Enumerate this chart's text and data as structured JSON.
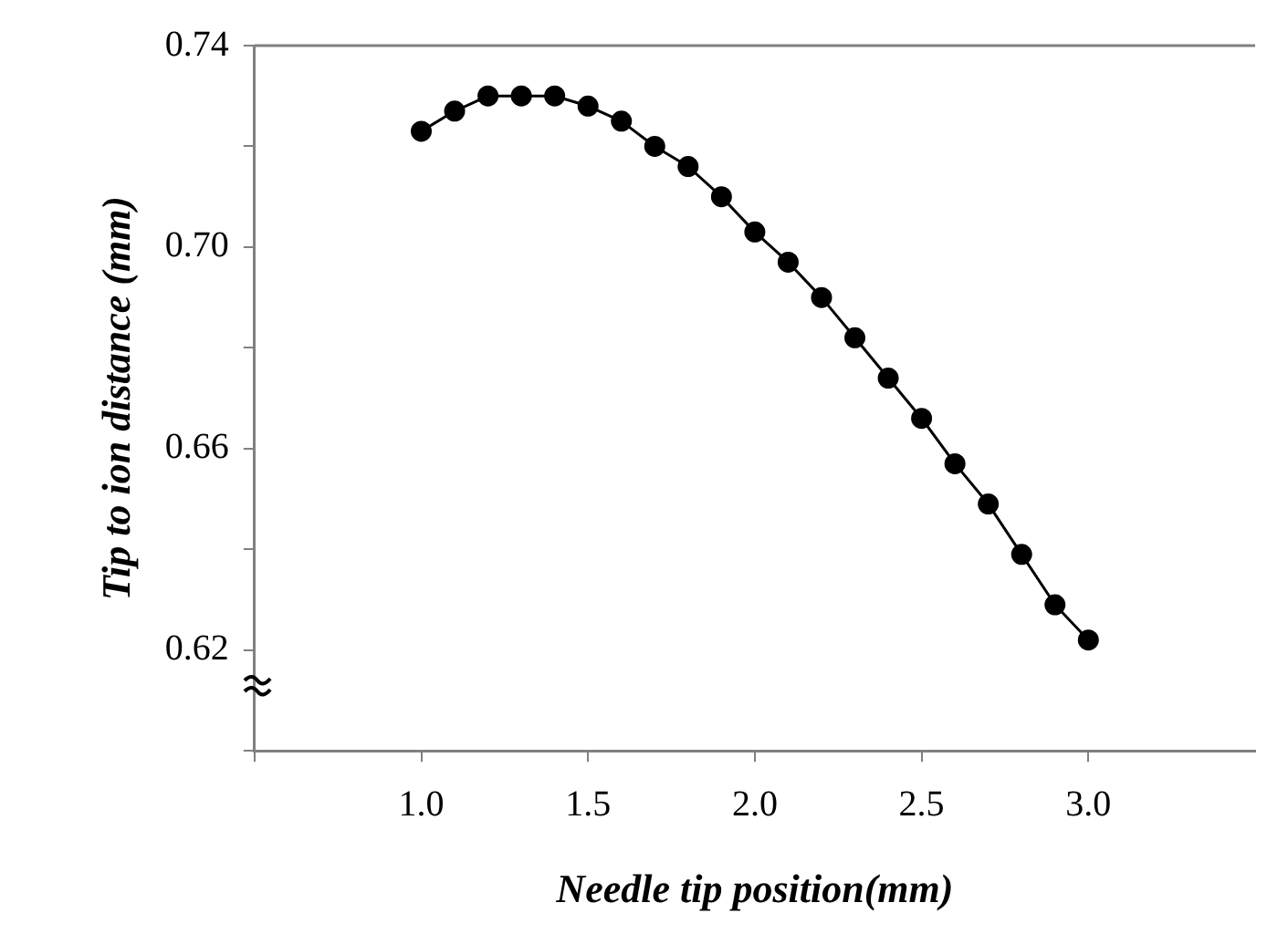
{
  "chart_data": {
    "type": "line",
    "xlabel": "Needle tip position(mm)",
    "ylabel": "Tip to ion distance (mm)",
    "x": [
      1.0,
      1.1,
      1.2,
      1.3,
      1.4,
      1.5,
      1.6,
      1.7,
      1.8,
      1.9,
      2.0,
      2.1,
      2.2,
      2.3,
      2.4,
      2.5,
      2.6,
      2.7,
      2.8,
      2.9,
      3.0
    ],
    "series": [
      {
        "color": "#000000",
        "values": [
          0.723,
          0.727,
          0.73,
          0.73,
          0.73,
          0.728,
          0.725,
          0.72,
          0.716,
          0.71,
          0.703,
          0.697,
          0.69,
          0.682,
          0.674,
          0.666,
          0.657,
          0.649,
          0.639,
          0.629,
          0.622
        ]
      }
    ],
    "xlim": [
      0.5,
      3.5
    ],
    "xticks": [
      {
        "value": 0.5,
        "label": null
      },
      {
        "value": 1,
        "label": "1.0"
      },
      {
        "value": 1.5,
        "label": "1.5"
      },
      {
        "value": 2,
        "label": "2.0"
      },
      {
        "value": 2.5,
        "label": "2.5"
      },
      {
        "value": 3,
        "label": "3.0"
      }
    ],
    "ylim": [
      0.6,
      0.74
    ],
    "yticks": [
      {
        "value": 0.6,
        "label": null
      },
      {
        "value": 0.62,
        "label": "0.62"
      },
      {
        "value": 0.64,
        "label": null
      },
      {
        "value": 0.66,
        "label": "0.66"
      },
      {
        "value": 0.68,
        "label": null
      },
      {
        "value": 0.7,
        "label": "0.70"
      },
      {
        "value": 0.72,
        "label": null
      },
      {
        "value": 0.74,
        "label": "0.74"
      }
    ],
    "grid": false,
    "legend": false,
    "marker": "circle",
    "line_style": "solid"
  }
}
